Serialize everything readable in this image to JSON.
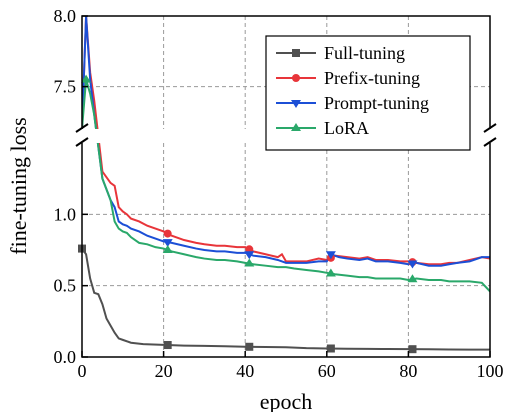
{
  "chart_data": {
    "type": "line",
    "xlabel": "epoch",
    "ylabel": "fine-tuning loss",
    "xlim": [
      0,
      100
    ],
    "xticks": [
      "0",
      "20",
      "40",
      "60",
      "80",
      "100"
    ],
    "axis_break": "broken y-axis (double slash marks)",
    "lower_ylim": [
      0.0,
      1.5
    ],
    "lower_yticks": [
      "0.0",
      "0.5",
      "1.0"
    ],
    "upper_ylim": [
      7.2,
      8.0
    ],
    "upper_yticks": [
      "7.5",
      "8.0"
    ],
    "grid": true,
    "legend_position": "top-right",
    "series": [
      {
        "name": "Full-tuning",
        "color": "#505050",
        "marker": "square",
        "x": [
          0,
          1,
          2,
          3,
          4,
          5,
          6,
          7,
          8,
          9,
          10,
          12,
          15,
          20,
          25,
          30,
          35,
          40,
          45,
          50,
          55,
          60,
          65,
          70,
          75,
          80,
          85,
          90,
          95,
          100
        ],
        "y": [
          0.76,
          0.72,
          0.55,
          0.45,
          0.44,
          0.37,
          0.27,
          0.22,
          0.17,
          0.13,
          0.12,
          0.1,
          0.09,
          0.085,
          0.08,
          0.078,
          0.075,
          0.072,
          0.07,
          0.068,
          0.062,
          0.06,
          0.058,
          0.057,
          0.056,
          0.055,
          0.054,
          0.053,
          0.052,
          0.052
        ]
      },
      {
        "name": "Prefix-tuning",
        "color": "#e8353a",
        "marker": "circle",
        "x": [
          0,
          1,
          2,
          3,
          5,
          7,
          8,
          9,
          10,
          11,
          12,
          14,
          16,
          18,
          20,
          22,
          25,
          28,
          30,
          33,
          35,
          38,
          40,
          42,
          45,
          48,
          49,
          50,
          51,
          53,
          55,
          58,
          60,
          62,
          65,
          68,
          70,
          72,
          75,
          78,
          80,
          82,
          85,
          88,
          90,
          92,
          95,
          98,
          100
        ],
        "y": [
          1.6,
          8.0,
          7.6,
          7.4,
          1.3,
          1.22,
          1.2,
          1.05,
          1.02,
          1.0,
          0.97,
          0.95,
          0.92,
          0.9,
          0.88,
          0.85,
          0.82,
          0.8,
          0.79,
          0.78,
          0.78,
          0.77,
          0.77,
          0.74,
          0.72,
          0.7,
          0.72,
          0.67,
          0.67,
          0.67,
          0.67,
          0.69,
          0.68,
          0.71,
          0.7,
          0.69,
          0.7,
          0.68,
          0.68,
          0.67,
          0.67,
          0.66,
          0.65,
          0.65,
          0.66,
          0.66,
          0.68,
          0.7,
          0.69
        ]
      },
      {
        "name": "Prompt-tuning",
        "color": "#1c4fd6",
        "marker": "triangle-down",
        "x": [
          0,
          1,
          2,
          3,
          5,
          7,
          8,
          9,
          10,
          11,
          12,
          14,
          16,
          18,
          20,
          22,
          25,
          28,
          30,
          33,
          35,
          38,
          40,
          42,
          45,
          48,
          50,
          52,
          55,
          58,
          60,
          61,
          63,
          65,
          68,
          70,
          72,
          75,
          78,
          80,
          82,
          85,
          88,
          90,
          92,
          95,
          98,
          100
        ],
        "y": [
          1.6,
          8.0,
          7.55,
          7.3,
          1.25,
          1.1,
          1.05,
          0.95,
          0.93,
          0.92,
          0.9,
          0.88,
          0.85,
          0.83,
          0.81,
          0.8,
          0.78,
          0.76,
          0.75,
          0.74,
          0.74,
          0.73,
          0.73,
          0.71,
          0.7,
          0.68,
          0.66,
          0.66,
          0.66,
          0.67,
          0.67,
          0.72,
          0.7,
          0.69,
          0.68,
          0.69,
          0.67,
          0.67,
          0.66,
          0.65,
          0.66,
          0.64,
          0.64,
          0.65,
          0.66,
          0.67,
          0.7,
          0.7
        ]
      },
      {
        "name": "LoRA",
        "color": "#2aa86a",
        "marker": "triangle-up",
        "x": [
          0,
          1,
          2,
          3,
          5,
          7,
          8,
          9,
          10,
          11,
          12,
          14,
          16,
          18,
          20,
          22,
          25,
          28,
          30,
          33,
          35,
          38,
          40,
          42,
          45,
          48,
          50,
          52,
          55,
          58,
          60,
          62,
          65,
          68,
          70,
          72,
          75,
          78,
          80,
          82,
          85,
          88,
          90,
          92,
          95,
          98,
          100
        ],
        "y": [
          1.6,
          7.55,
          7.45,
          7.3,
          1.25,
          1.1,
          0.95,
          0.9,
          0.88,
          0.87,
          0.84,
          0.8,
          0.79,
          0.77,
          0.76,
          0.74,
          0.72,
          0.7,
          0.69,
          0.68,
          0.68,
          0.67,
          0.66,
          0.65,
          0.64,
          0.63,
          0.63,
          0.62,
          0.61,
          0.6,
          0.59,
          0.58,
          0.57,
          0.56,
          0.56,
          0.55,
          0.55,
          0.55,
          0.54,
          0.55,
          0.54,
          0.54,
          0.53,
          0.53,
          0.53,
          0.52,
          0.46
        ]
      }
    ],
    "marker_every": 20
  }
}
